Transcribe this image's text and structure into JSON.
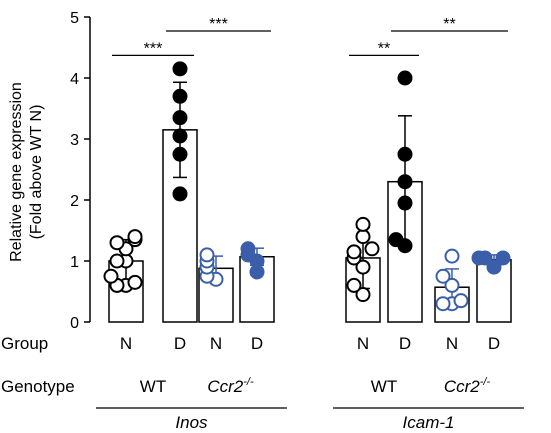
{
  "chart_data": {
    "type": "bar",
    "ylabel_line1": "Relative gene expression",
    "ylabel_line2": "(Fold above WT N)",
    "ylim": [
      0,
      5
    ],
    "yticks": [
      "0",
      "1",
      "2",
      "3",
      "4",
      "5"
    ],
    "row_labels": {
      "group": "Group",
      "genotype": "Genotype"
    },
    "genotype_labels": {
      "wt": "WT",
      "ccr2": "Ccr2",
      "ccr2_sup": "-/-"
    },
    "colors": {
      "wt": "#000000",
      "ccr2": "#3a5fa8"
    },
    "panels": [
      {
        "gene": "Inos",
        "bars": [
          {
            "group": "N",
            "genotype": "WT",
            "filled": false,
            "mean": 1.0,
            "sd": 0.35,
            "points": [
              0.6,
              0.6,
              0.65,
              0.75,
              1.0,
              1.0,
              1.2,
              1.3,
              1.35,
              1.4
            ]
          },
          {
            "group": "D",
            "genotype": "WT",
            "filled": true,
            "mean": 3.15,
            "sd": 0.78,
            "points": [
              2.1,
              2.75,
              3.05,
              3.35,
              3.7,
              4.15
            ]
          },
          {
            "group": "N",
            "genotype": "Ccr2-/-",
            "filled": false,
            "mean": 0.88,
            "sd": 0.2,
            "points": [
              0.7,
              0.75,
              0.9,
              1.0,
              1.1
            ]
          },
          {
            "group": "D",
            "genotype": "Ccr2-/-",
            "filled": true,
            "mean": 1.07,
            "sd": 0.14,
            "points": [
              0.82,
              1.0,
              1.1,
              1.2
            ]
          }
        ],
        "significance": [
          {
            "label": "***",
            "from": 0,
            "to": 1,
            "y": 4.6
          },
          {
            "label": "***",
            "from": 1,
            "to": 3,
            "y": 5.0
          }
        ]
      },
      {
        "gene": "Icam-1",
        "bars": [
          {
            "group": "N",
            "genotype": "WT",
            "filled": false,
            "mean": 1.05,
            "sd": 0.5,
            "points": [
              0.45,
              0.6,
              0.9,
              1.05,
              1.15,
              1.2,
              1.4,
              1.6
            ]
          },
          {
            "group": "D",
            "genotype": "WT",
            "filled": true,
            "mean": 2.3,
            "sd": 1.08,
            "points": [
              1.25,
              1.35,
              1.95,
              2.3,
              2.75,
              4.0
            ]
          },
          {
            "group": "N",
            "genotype": "Ccr2-/-",
            "filled": false,
            "mean": 0.57,
            "sd": 0.3,
            "points": [
              0.3,
              0.3,
              0.35,
              0.6,
              0.75,
              1.08
            ]
          },
          {
            "group": "D",
            "genotype": "Ccr2-/-",
            "filled": true,
            "mean": 1.02,
            "sd": 0.08,
            "points": [
              0.9,
              1.05,
              1.05,
              1.05
            ]
          }
        ],
        "significance": [
          {
            "label": "**",
            "from": 0,
            "to": 1,
            "y": 4.6
          },
          {
            "label": "**",
            "from": 1,
            "to": 3,
            "y": 5.0
          }
        ]
      }
    ]
  }
}
